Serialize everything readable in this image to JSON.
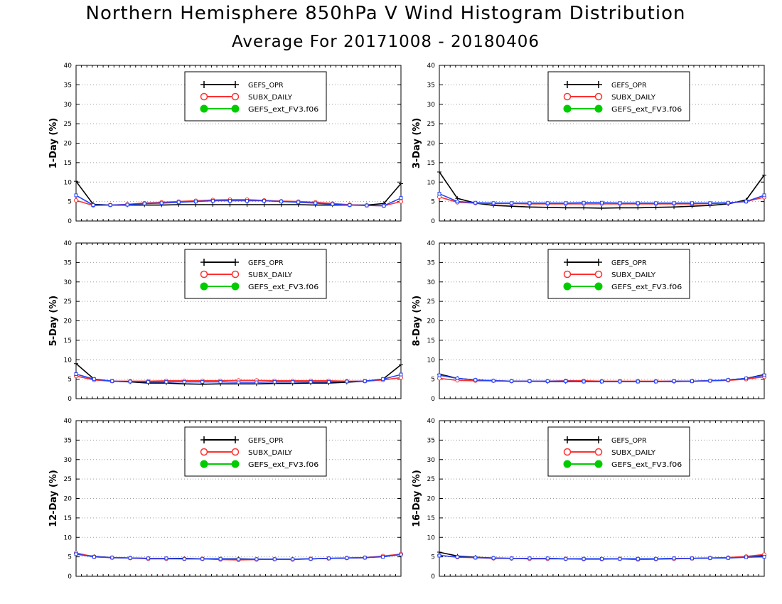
{
  "title": "Northern Hemisphere 850hPa V Wind Histogram Distribution",
  "subtitle": "Average For 20171008 - 20180406",
  "colors": {
    "GEFS_OPR": "#000000",
    "SUBX_DAILY": "#ff3030",
    "GEFS_ext_FV3.f06": "#00cc00",
    "overlay": "#2244ff"
  },
  "legend_entries": [
    "GEFS_OPR",
    "SUBX_DAILY",
    "GEFS_ext_FV3.f06"
  ],
  "chart_data": [
    {
      "type": "line",
      "ylabel": "1-Day (%)",
      "ylim": [
        0,
        40
      ],
      "yticks": [
        0,
        5,
        10,
        15,
        20,
        25,
        30,
        35,
        40
      ],
      "grid": true,
      "legend": "top-center",
      "series": [
        {
          "name": "GEFS_OPR",
          "values": [
            10.2,
            4.3,
            4.1,
            4.1,
            4.1,
            4.1,
            4.2,
            4.2,
            4.2,
            4.2,
            4.2,
            4.2,
            4.2,
            4.2,
            4.1,
            4.1,
            4.1,
            4.1,
            4.5,
            9.6
          ]
        },
        {
          "name": "SUBX_DAILY",
          "values": [
            5.3,
            4.0,
            4.1,
            4.3,
            4.6,
            4.8,
            5.0,
            5.2,
            5.4,
            5.5,
            5.5,
            5.3,
            5.1,
            5.0,
            4.8,
            4.5,
            4.2,
            4.0,
            3.9,
            5.0
          ]
        },
        {
          "name": "GEFS_ext_FV3.f06",
          "values": [
            6.6,
            4.1,
            4.1,
            4.2,
            4.5,
            4.6,
            4.8,
            5.0,
            5.2,
            5.2,
            5.2,
            5.2,
            5.0,
            4.8,
            4.6,
            4.3,
            4.1,
            4.0,
            3.9,
            5.9
          ]
        }
      ]
    },
    {
      "type": "line",
      "ylabel": "3-Day (%)",
      "ylim": [
        0,
        40
      ],
      "yticks": [
        0,
        5,
        10,
        15,
        20,
        25,
        30,
        35,
        40
      ],
      "grid": true,
      "legend": "top-center",
      "series": [
        {
          "name": "GEFS_OPR",
          "values": [
            12.6,
            5.8,
            4.6,
            4.0,
            3.8,
            3.6,
            3.5,
            3.4,
            3.4,
            3.3,
            3.4,
            3.4,
            3.5,
            3.6,
            3.8,
            4.0,
            4.4,
            5.4,
            11.8
          ]
        },
        {
          "name": "SUBX_DAILY",
          "values": [
            6.2,
            4.8,
            4.6,
            4.5,
            4.5,
            4.4,
            4.4,
            4.4,
            4.4,
            4.4,
            4.4,
            4.4,
            4.4,
            4.4,
            4.4,
            4.5,
            4.6,
            5.0,
            6.1
          ]
        },
        {
          "name": "GEFS_ext_FV3.f06",
          "values": [
            7.0,
            5.0,
            4.7,
            4.6,
            4.6,
            4.6,
            4.6,
            4.6,
            4.7,
            4.7,
            4.6,
            4.6,
            4.6,
            4.6,
            4.6,
            4.6,
            4.7,
            5.0,
            6.6
          ]
        }
      ]
    },
    {
      "type": "line",
      "ylabel": "5-Day (%)",
      "ylim": [
        0,
        40
      ],
      "yticks": [
        0,
        5,
        10,
        15,
        20,
        25,
        30,
        35,
        40
      ],
      "grid": true,
      "legend": "top-center",
      "series": [
        {
          "name": "GEFS_OPR",
          "values": [
            9.0,
            5.0,
            4.5,
            4.3,
            4.0,
            4.0,
            3.8,
            3.7,
            3.8,
            3.8,
            3.8,
            3.9,
            3.9,
            4.0,
            4.0,
            4.2,
            4.5,
            5.0,
            8.7
          ]
        },
        {
          "name": "SUBX_DAILY",
          "values": [
            5.8,
            4.8,
            4.5,
            4.5,
            4.5,
            4.6,
            4.6,
            4.6,
            4.6,
            4.7,
            4.7,
            4.6,
            4.6,
            4.6,
            4.6,
            4.5,
            4.5,
            4.8,
            5.4
          ]
        },
        {
          "name": "GEFS_ext_FV3.f06",
          "values": [
            6.3,
            5.0,
            4.5,
            4.4,
            4.3,
            4.3,
            4.3,
            4.3,
            4.3,
            4.2,
            4.2,
            4.3,
            4.3,
            4.3,
            4.3,
            4.4,
            4.5,
            5.0,
            6.2
          ]
        }
      ]
    },
    {
      "type": "line",
      "ylabel": "8-Day (%)",
      "ylim": [
        0,
        40
      ],
      "yticks": [
        0,
        5,
        10,
        15,
        20,
        25,
        30,
        35,
        40
      ],
      "grid": true,
      "legend": "top-center",
      "series": [
        {
          "name": "GEFS_OPR",
          "values": [
            6.3,
            5.2,
            4.8,
            4.6,
            4.5,
            4.5,
            4.4,
            4.4,
            4.4,
            4.4,
            4.4,
            4.4,
            4.4,
            4.4,
            4.5,
            4.6,
            4.8,
            5.2,
            6.2
          ]
        },
        {
          "name": "SUBX_DAILY",
          "values": [
            5.2,
            4.7,
            4.6,
            4.6,
            4.5,
            4.5,
            4.5,
            4.6,
            4.6,
            4.5,
            4.5,
            4.5,
            4.5,
            4.5,
            4.5,
            4.6,
            4.7,
            5.0,
            5.6
          ]
        },
        {
          "name": "GEFS_ext_FV3.f06",
          "values": [
            6.0,
            5.2,
            4.8,
            4.6,
            4.5,
            4.5,
            4.5,
            4.5,
            4.4,
            4.4,
            4.4,
            4.4,
            4.4,
            4.5,
            4.5,
            4.6,
            4.8,
            5.2,
            6.0
          ]
        }
      ]
    },
    {
      "type": "line",
      "ylabel": "12-Day (%)",
      "ylim": [
        0,
        40
      ],
      "yticks": [
        0,
        5,
        10,
        15,
        20,
        25,
        30,
        35,
        40
      ],
      "grid": true,
      "legend": "top-center",
      "series": [
        {
          "name": "GEFS_OPR",
          "values": [
            5.8,
            5.1,
            4.8,
            4.7,
            4.6,
            4.6,
            4.6,
            4.5,
            4.5,
            4.5,
            4.4,
            4.4,
            4.4,
            4.5,
            4.6,
            4.7,
            4.8,
            5.1,
            5.6
          ]
        },
        {
          "name": "SUBX_DAILY",
          "values": [
            6.0,
            5.0,
            4.8,
            4.7,
            4.5,
            4.5,
            4.5,
            4.5,
            4.3,
            4.2,
            4.3,
            4.4,
            4.3,
            4.5,
            4.6,
            4.7,
            4.8,
            5.2,
            5.7
          ]
        },
        {
          "name": "GEFS_ext_FV3.f06",
          "values": [
            5.7,
            5.0,
            4.8,
            4.7,
            4.6,
            4.6,
            4.5,
            4.5,
            4.5,
            4.4,
            4.4,
            4.4,
            4.4,
            4.5,
            4.6,
            4.7,
            4.8,
            5.0,
            5.6
          ]
        }
      ]
    },
    {
      "type": "line",
      "ylabel": "16-Day (%)",
      "ylim": [
        0,
        40
      ],
      "yticks": [
        0,
        5,
        10,
        15,
        20,
        25,
        30,
        35,
        40
      ],
      "grid": true,
      "legend": "top-center",
      "series": [
        {
          "name": "GEFS_OPR",
          "values": [
            6.2,
            5.2,
            4.9,
            4.7,
            4.6,
            4.6,
            4.6,
            4.5,
            4.5,
            4.5,
            4.5,
            4.5,
            4.5,
            4.6,
            4.6,
            4.7,
            4.8,
            5.0,
            5.3
          ]
        },
        {
          "name": "SUBX_DAILY",
          "values": [
            5.4,
            4.9,
            4.8,
            4.6,
            4.6,
            4.5,
            4.5,
            4.5,
            4.4,
            4.4,
            4.5,
            4.3,
            4.4,
            4.5,
            4.6,
            4.7,
            4.8,
            5.1,
            5.6
          ]
        },
        {
          "name": "GEFS_ext_FV3.f06",
          "values": [
            5.3,
            5.0,
            4.8,
            4.7,
            4.6,
            4.6,
            4.6,
            4.5,
            4.5,
            4.5,
            4.5,
            4.5,
            4.5,
            4.6,
            4.6,
            4.7,
            4.7,
            4.9,
            5.0
          ]
        }
      ]
    }
  ]
}
